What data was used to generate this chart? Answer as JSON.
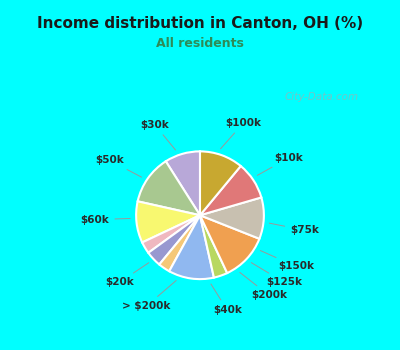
{
  "title": "Income distribution in Canton, OH (%)",
  "subtitle": "All residents",
  "title_color": "#1a1a1a",
  "subtitle_color": "#2e8b57",
  "background_cyan": "#00ffff",
  "background_box": "#e0f2ec",
  "watermark": "City-Data.com",
  "labels": [
    "$100k",
    "$10k",
    "$75k",
    "$150k",
    "$125k",
    "$200k",
    "$40k",
    "> $200k",
    "$20k",
    "$60k",
    "$50k",
    "$30k"
  ],
  "values": [
    9.0,
    12.5,
    10.5,
    3.0,
    4.0,
    3.0,
    11.5,
    3.5,
    12.0,
    10.5,
    9.5,
    11.0
  ],
  "colors": [
    "#b8a8d8",
    "#a8c890",
    "#f8f870",
    "#f0b8c0",
    "#9898d0",
    "#f5c878",
    "#90b8f0",
    "#b8d860",
    "#f0a050",
    "#c8c0b0",
    "#e07878",
    "#c8a830"
  ],
  "startangle": 90,
  "label_fontsize": 7.5
}
